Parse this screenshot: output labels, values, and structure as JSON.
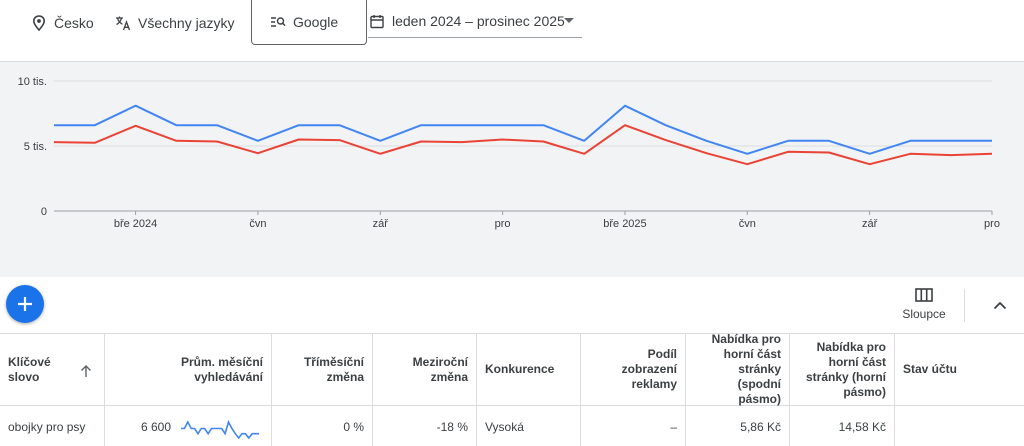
{
  "filters": {
    "location": "Česko",
    "language": "Všechny jazyky",
    "search_engine": "Google",
    "date_range": "leden 2024 – prosinec 2025"
  },
  "chart_data": {
    "type": "line",
    "y_ticks": [
      "10 tis.",
      "5 tis.",
      "0"
    ],
    "ylim": [
      0,
      10000
    ],
    "x_ticks": [
      "bře 2024",
      "čvn",
      "zář",
      "pro",
      "bře 2025",
      "čvn",
      "zář",
      "pro"
    ],
    "x_months": [
      "2024-01",
      "2024-02",
      "2024-03",
      "2024-04",
      "2024-05",
      "2024-06",
      "2024-07",
      "2024-08",
      "2024-09",
      "2024-10",
      "2024-11",
      "2024-12",
      "2025-01",
      "2025-02",
      "2025-03",
      "2025-04",
      "2025-05",
      "2025-06",
      "2025-07",
      "2025-08",
      "2025-09",
      "2025-10",
      "2025-11",
      "2025-12"
    ],
    "series": [
      {
        "color": "#4285f4",
        "values": [
          6600,
          6600,
          8100,
          6600,
          6600,
          5400,
          6600,
          6600,
          5400,
          6600,
          6600,
          6600,
          6600,
          5400,
          8100,
          6600,
          5400,
          4400,
          5400,
          5400,
          4400,
          5400,
          5400,
          5400
        ]
      },
      {
        "color": "#ea4335",
        "values": [
          5300,
          5250,
          6550,
          5400,
          5350,
          4450,
          5500,
          5450,
          4400,
          5350,
          5300,
          5500,
          5350,
          4400,
          6600,
          5450,
          4450,
          3600,
          4550,
          4500,
          3600,
          4400,
          4300,
          4400
        ]
      }
    ],
    "grid": true
  },
  "toolbar": {
    "add_label": "+",
    "columns_label": "Sloupce"
  },
  "table": {
    "headers": {
      "keyword": "Klíčové slovo",
      "avg_searches": "Prům. měsíční vyhledávání",
      "three_month": "Tříměsíční změna",
      "yoy": "Meziroční změna",
      "competition": "Konkurence",
      "ad_share": "Podíl zobrazení reklamy",
      "bid_low": "Nabídka pro horní část stránky (spodní pásmo)",
      "bid_high": "Nabídka pro horní část stránky (horní pásmo)",
      "account_status": "Stav účtu"
    },
    "rows": [
      {
        "keyword": "obojky pro psy",
        "avg_searches": "6 600",
        "trend": [
          6600,
          6600,
          8100,
          6600,
          6600,
          5400,
          6600,
          6600,
          5400,
          6600,
          6600,
          6600,
          6600,
          5400,
          8100,
          6600,
          5400,
          4400,
          5400,
          5400,
          4400,
          5400,
          5400,
          5400
        ],
        "three_month": "0 %",
        "yoy": "-18 %",
        "competition": "Vysoká",
        "ad_share": "–",
        "bid_low": "5,86 Kč",
        "bid_high": "14,58 Kč",
        "account_status": ""
      }
    ]
  }
}
